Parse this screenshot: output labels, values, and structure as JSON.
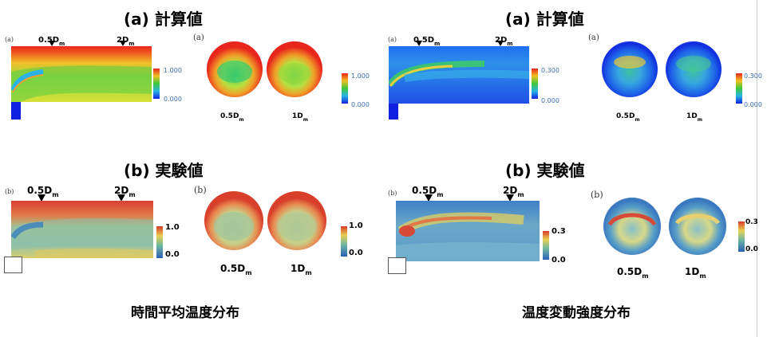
{
  "left_panel": {
    "sim_heading": "(a) 計算値",
    "exp_heading": "(b) 実験値",
    "sim_tag": "(a)",
    "exp_tag": "(b)",
    "sim_circle_tag": "(a)",
    "exp_circle_tag": "(b)",
    "marker1": "0.5D",
    "marker2": "2D",
    "sub": "m",
    "sim_scale": {
      "max": "1.000",
      "min": "0.000"
    },
    "sim_circle_scale": {
      "max": "1.000",
      "min": "0.000"
    },
    "exp_scale": {
      "max": "1.0",
      "min": "0.0"
    },
    "exp_circle_scale": {
      "max": "1.0",
      "min": "0.0"
    },
    "disc1": "0.5D",
    "disc2": "1D",
    "caption": "時間平均温度分布"
  },
  "right_panel": {
    "sim_heading": "(a) 計算値",
    "exp_heading": "(b) 実験値",
    "sim_tag": "(a)",
    "exp_tag": "(b)",
    "sim_circle_tag": "(a)",
    "exp_circle_tag": "(b)",
    "marker1": "0.5D",
    "marker2": "2D",
    "sub": "m",
    "sim_scale": {
      "max": "0.300",
      "min": "0.000"
    },
    "sim_circle_scale": {
      "max": "0.300",
      "min": "0.000"
    },
    "exp_scale": {
      "max": "0.3",
      "min": "0.0"
    },
    "exp_circle_scale": {
      "max": "0.3",
      "min": "0.0"
    },
    "disc1": "0.5D",
    "disc2": "1D",
    "caption": "温度変動強度分布"
  },
  "colors": {
    "red": "#e8261c",
    "orange": "#f0a030",
    "yellow": "#e8e030",
    "green": "#3cc83c",
    "cyan": "#28b4e6",
    "blue": "#1020e0"
  }
}
